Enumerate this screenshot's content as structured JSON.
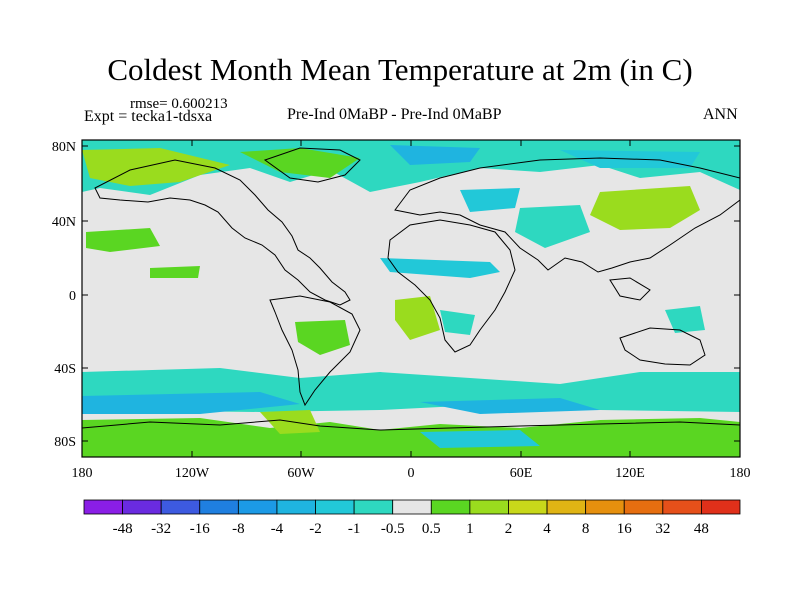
{
  "title": "Coldest Month Mean Temperature at 2m (in C)",
  "rmse": "rmse= 0.600213",
  "expt": "Expt = tecka1-tdsxa",
  "center_label": "Pre-Ind 0MaBP - Pre-Ind    0MaBP",
  "right_label": "ANN",
  "lat_labels": [
    "80N",
    "40N",
    "0",
    "40S",
    "80S"
  ],
  "lon_labels": [
    "180",
    "120W",
    "60W",
    "0",
    "60E",
    "120E",
    "180"
  ],
  "colorbar": {
    "labels": [
      "-48",
      "-32",
      "-16",
      "-8",
      "-4",
      "-2",
      "-1",
      "-0.5",
      "0.5",
      "1",
      "2",
      "4",
      "8",
      "16",
      "32",
      "48"
    ],
    "colors": [
      "#8a1ee6",
      "#6a2be0",
      "#3d5ae0",
      "#1f7fe0",
      "#1c9ae6",
      "#1fb4e0",
      "#22c8d8",
      "#2ed8c0",
      "#e6e6e6",
      "#5ad622",
      "#9adc1e",
      "#c8d81a",
      "#e0b414",
      "#e6900e",
      "#e66e10",
      "#e6501a",
      "#e0301a"
    ]
  },
  "map": {
    "lat_range": [
      -90,
      90
    ],
    "lon_range": [
      -180,
      180
    ],
    "background_color": "#e6e6e6"
  }
}
